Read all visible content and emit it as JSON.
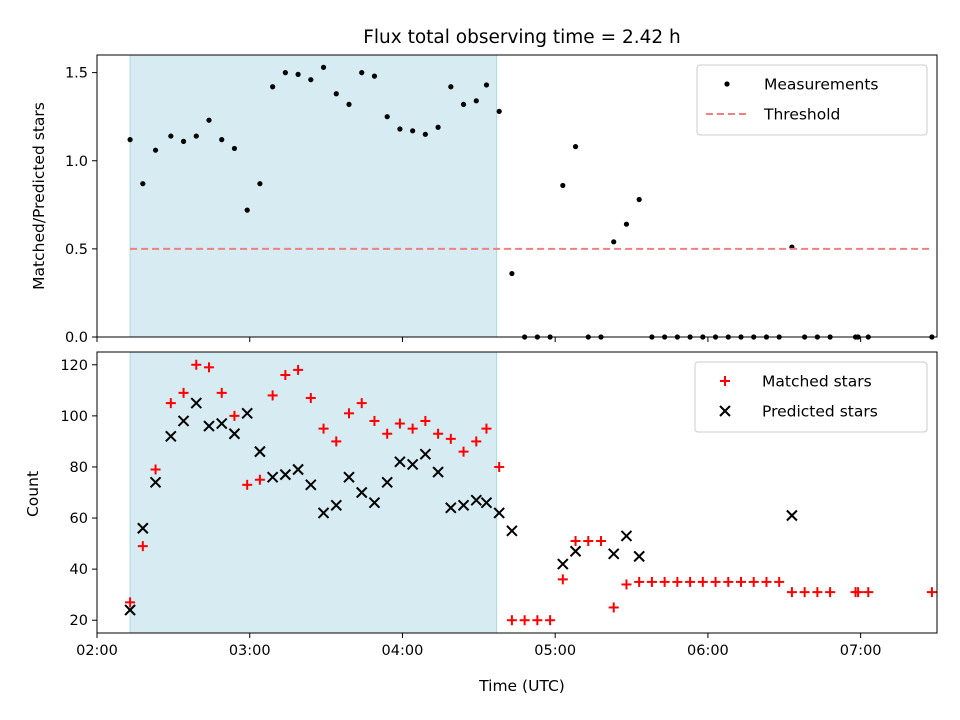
{
  "chart_data": [
    {
      "type": "scatter",
      "title": "Flux total observing time = 2.42 h",
      "xlabel": "",
      "ylabel": "Matched/Predicted stars",
      "xlim": [
        "02:00",
        "07:30"
      ],
      "ylim": [
        0,
        1.6
      ],
      "yticks": [
        "0.0",
        "0.5",
        "1.0",
        "1.5"
      ],
      "xticks": [
        "02:00",
        "03:00",
        "04:00",
        "05:00",
        "06:00",
        "07:00"
      ],
      "shaded_region": [
        "02:13",
        "04:37"
      ],
      "legend": "top-right",
      "series": [
        {
          "name": "Measurements",
          "marker": "dot",
          "color": "#000000",
          "points": [
            [
              "02:13",
              1.12
            ],
            [
              "02:18",
              0.87
            ],
            [
              "02:23",
              1.06
            ],
            [
              "02:29",
              1.14
            ],
            [
              "02:34",
              1.11
            ],
            [
              "02:39",
              1.14
            ],
            [
              "02:44",
              1.23
            ],
            [
              "02:49",
              1.12
            ],
            [
              "02:54",
              1.07
            ],
            [
              "02:59",
              0.72
            ],
            [
              "03:04",
              0.87
            ],
            [
              "03:09",
              1.42
            ],
            [
              "03:14",
              1.5
            ],
            [
              "03:19",
              1.49
            ],
            [
              "03:24",
              1.46
            ],
            [
              "03:29",
              1.53
            ],
            [
              "03:34",
              1.38
            ],
            [
              "03:39",
              1.32
            ],
            [
              "03:44",
              1.5
            ],
            [
              "03:49",
              1.48
            ],
            [
              "03:54",
              1.25
            ],
            [
              "03:59",
              1.18
            ],
            [
              "04:04",
              1.17
            ],
            [
              "04:09",
              1.15
            ],
            [
              "04:14",
              1.19
            ],
            [
              "04:19",
              1.42
            ],
            [
              "04:24",
              1.32
            ],
            [
              "04:29",
              1.34
            ],
            [
              "04:33",
              1.43
            ],
            [
              "04:38",
              1.28
            ],
            [
              "04:43",
              0.36
            ],
            [
              "04:48",
              0.0
            ],
            [
              "04:53",
              0.0
            ],
            [
              "04:58",
              0.0
            ],
            [
              "05:03",
              0.86
            ],
            [
              "05:08",
              1.08
            ],
            [
              "05:13",
              0.0
            ],
            [
              "05:18",
              0.0
            ],
            [
              "05:23",
              0.54
            ],
            [
              "05:28",
              0.64
            ],
            [
              "05:33",
              0.78
            ],
            [
              "05:38",
              0.0
            ],
            [
              "05:43",
              0.0
            ],
            [
              "05:48",
              0.0
            ],
            [
              "05:53",
              0.0
            ],
            [
              "05:58",
              0.0
            ],
            [
              "06:03",
              0.0
            ],
            [
              "06:08",
              0.0
            ],
            [
              "06:13",
              0.0
            ],
            [
              "06:18",
              0.0
            ],
            [
              "06:23",
              0.0
            ],
            [
              "06:28",
              0.0
            ],
            [
              "06:33",
              0.51
            ],
            [
              "06:38",
              0.0
            ],
            [
              "06:43",
              0.0
            ],
            [
              "06:48",
              0.0
            ],
            [
              "06:58",
              0.0
            ],
            [
              "06:59",
              0.0
            ],
            [
              "07:03",
              0.0
            ],
            [
              "07:28",
              0.0
            ]
          ]
        },
        {
          "name": "Threshold",
          "marker": "dashed-line",
          "color": "#f08080",
          "points": [
            [
              "02:13",
              0.5
            ],
            [
              "07:28",
              0.5
            ]
          ]
        }
      ]
    },
    {
      "type": "scatter",
      "title": "",
      "xlabel": "Time (UTC)",
      "ylabel": "Count",
      "xlim": [
        "02:00",
        "07:30"
      ],
      "ylim": [
        15,
        125
      ],
      "yticks": [
        "20",
        "40",
        "60",
        "80",
        "100",
        "120"
      ],
      "xticks": [
        "02:00",
        "03:00",
        "04:00",
        "05:00",
        "06:00",
        "07:00"
      ],
      "shaded_region": [
        "02:13",
        "04:37"
      ],
      "legend": "top-right",
      "series": [
        {
          "name": "Matched stars",
          "marker": "plus",
          "color": "#ff0000",
          "points": [
            [
              "02:13",
              27
            ],
            [
              "02:18",
              49
            ],
            [
              "02:23",
              79
            ],
            [
              "02:29",
              105
            ],
            [
              "02:34",
              109
            ],
            [
              "02:39",
              120
            ],
            [
              "02:44",
              119
            ],
            [
              "02:49",
              109
            ],
            [
              "02:54",
              100
            ],
            [
              "02:59",
              73
            ],
            [
              "03:04",
              75
            ],
            [
              "03:09",
              108
            ],
            [
              "03:14",
              116
            ],
            [
              "03:19",
              118
            ],
            [
              "03:24",
              107
            ],
            [
              "03:29",
              95
            ],
            [
              "03:34",
              90
            ],
            [
              "03:39",
              101
            ],
            [
              "03:44",
              105
            ],
            [
              "03:49",
              98
            ],
            [
              "03:54",
              93
            ],
            [
              "03:59",
              97
            ],
            [
              "04:04",
              95
            ],
            [
              "04:09",
              98
            ],
            [
              "04:14",
              93
            ],
            [
              "04:19",
              91
            ],
            [
              "04:24",
              86
            ],
            [
              "04:29",
              90
            ],
            [
              "04:33",
              95
            ],
            [
              "04:38",
              80
            ],
            [
              "04:43",
              20
            ],
            [
              "04:48",
              20
            ],
            [
              "04:53",
              20
            ],
            [
              "04:58",
              20
            ],
            [
              "05:03",
              36
            ],
            [
              "05:08",
              51
            ],
            [
              "05:13",
              51
            ],
            [
              "05:18",
              51
            ],
            [
              "05:23",
              25
            ],
            [
              "05:28",
              34
            ],
            [
              "05:33",
              35
            ],
            [
              "05:38",
              35
            ],
            [
              "05:43",
              35
            ],
            [
              "05:48",
              35
            ],
            [
              "05:53",
              35
            ],
            [
              "05:58",
              35
            ],
            [
              "06:03",
              35
            ],
            [
              "06:08",
              35
            ],
            [
              "06:13",
              35
            ],
            [
              "06:18",
              35
            ],
            [
              "06:23",
              35
            ],
            [
              "06:28",
              35
            ],
            [
              "06:33",
              31
            ],
            [
              "06:38",
              31
            ],
            [
              "06:43",
              31
            ],
            [
              "06:48",
              31
            ],
            [
              "06:58",
              31
            ],
            [
              "06:59",
              31
            ],
            [
              "07:03",
              31
            ],
            [
              "07:28",
              31
            ]
          ]
        },
        {
          "name": "Predicted stars",
          "marker": "x",
          "color": "#000000",
          "points": [
            [
              "02:13",
              24
            ],
            [
              "02:18",
              56
            ],
            [
              "02:23",
              74
            ],
            [
              "02:29",
              92
            ],
            [
              "02:34",
              98
            ],
            [
              "02:39",
              105
            ],
            [
              "02:44",
              96
            ],
            [
              "02:49",
              97
            ],
            [
              "02:54",
              93
            ],
            [
              "02:59",
              101
            ],
            [
              "03:04",
              86
            ],
            [
              "03:09",
              76
            ],
            [
              "03:14",
              77
            ],
            [
              "03:19",
              79
            ],
            [
              "03:24",
              73
            ],
            [
              "03:29",
              62
            ],
            [
              "03:34",
              65
            ],
            [
              "03:39",
              76
            ],
            [
              "03:44",
              70
            ],
            [
              "03:49",
              66
            ],
            [
              "03:54",
              74
            ],
            [
              "03:59",
              82
            ],
            [
              "04:04",
              81
            ],
            [
              "04:09",
              85
            ],
            [
              "04:14",
              78
            ],
            [
              "04:19",
              64
            ],
            [
              "04:24",
              65
            ],
            [
              "04:29",
              67
            ],
            [
              "04:33",
              66
            ],
            [
              "04:38",
              62
            ],
            [
              "04:43",
              55
            ],
            [
              "05:03",
              42
            ],
            [
              "05:08",
              47
            ],
            [
              "05:23",
              46
            ],
            [
              "05:28",
              53
            ],
            [
              "05:33",
              45
            ],
            [
              "06:33",
              61
            ]
          ]
        }
      ]
    }
  ]
}
